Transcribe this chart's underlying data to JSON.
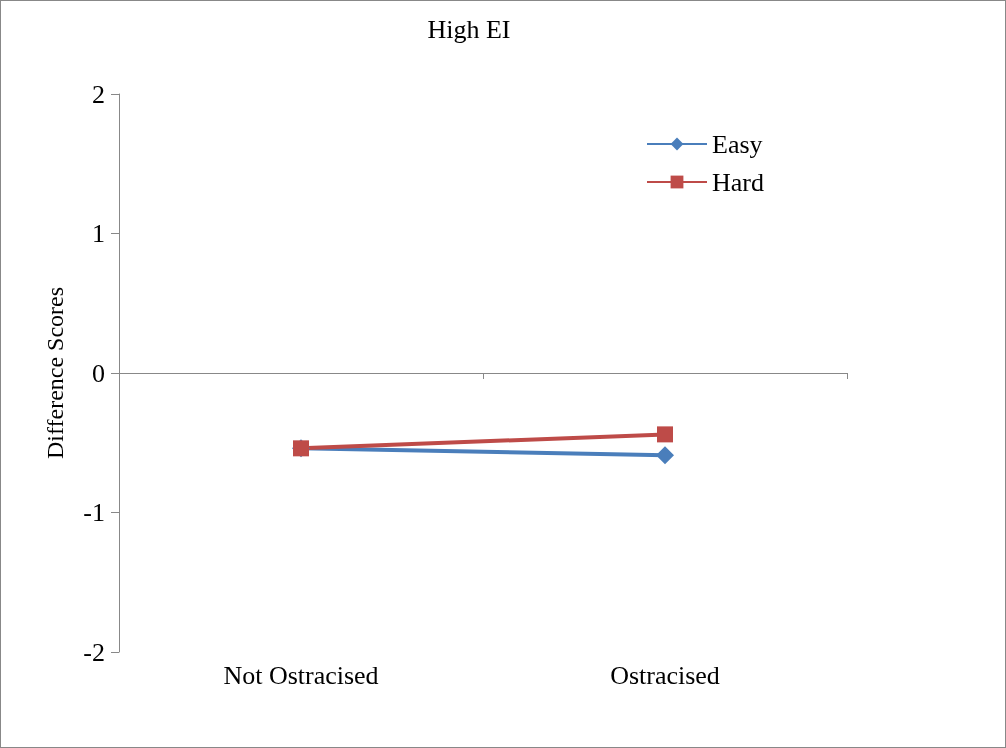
{
  "chart_data": {
    "type": "line",
    "title": "High EI",
    "ylabel": "Difference Scores",
    "categories": [
      "Not Ostracised",
      "Ostracised"
    ],
    "series": [
      {
        "name": "Easy",
        "color": "#4a7ebb",
        "marker": "diamond",
        "values": [
          -0.54,
          -0.59
        ]
      },
      {
        "name": "Hard",
        "color": "#be4b48",
        "marker": "square",
        "values": [
          -0.54,
          -0.44
        ]
      }
    ],
    "ylim": [
      -2,
      2
    ],
    "yticks": [
      -2,
      -1,
      0,
      1,
      2
    ],
    "legend": "top right",
    "line_style": "solid"
  }
}
